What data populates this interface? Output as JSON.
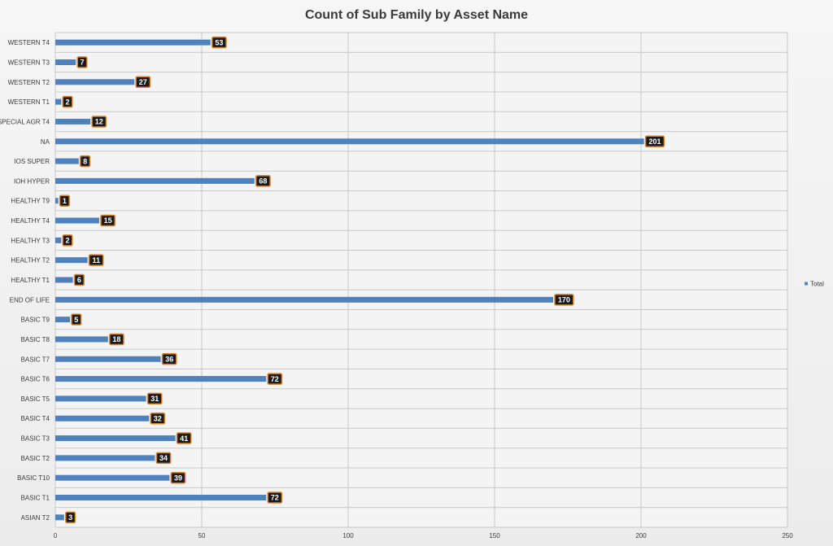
{
  "chart_data": {
    "type": "bar",
    "orientation": "horizontal",
    "title": "Count of Sub Family by Asset Name",
    "categories": [
      "WESTERN T4",
      "WESTERN T3",
      "WESTERN T2",
      "WESTERN T1",
      "SPECIAL AGR T4",
      "NA",
      "IOS SUPER",
      "IOH HYPER",
      "HEALTHY T9",
      "HEALTHY T4",
      "HEALTHY T3",
      "HEALTHY T2",
      "HEALTHY T1",
      "END OF LIFE",
      "BASIC T9",
      "BASIC T8",
      "BASIC T7",
      "BASIC T6",
      "BASIC T5",
      "BASIC T4",
      "BASIC T3",
      "BASIC T2",
      "BASIC T10",
      "BASIC T1",
      "ASIAN T2"
    ],
    "series": [
      {
        "name": "Total",
        "values": [
          53,
          7,
          27,
          2,
          12,
          201,
          8,
          68,
          1,
          15,
          2,
          11,
          6,
          170,
          5,
          18,
          36,
          72,
          31,
          32,
          41,
          34,
          39,
          72,
          3
        ]
      }
    ],
    "xlim": [
      0,
      250
    ],
    "xticks": [
      0,
      50,
      100,
      150,
      200,
      250
    ],
    "grid": true,
    "data_labels": true,
    "legend": {
      "position": "right",
      "entries": [
        "Total"
      ]
    },
    "colors": {
      "bar": "#4f81bd",
      "label_bg": "#1a1a1a",
      "label_border": "#d9822b"
    }
  }
}
